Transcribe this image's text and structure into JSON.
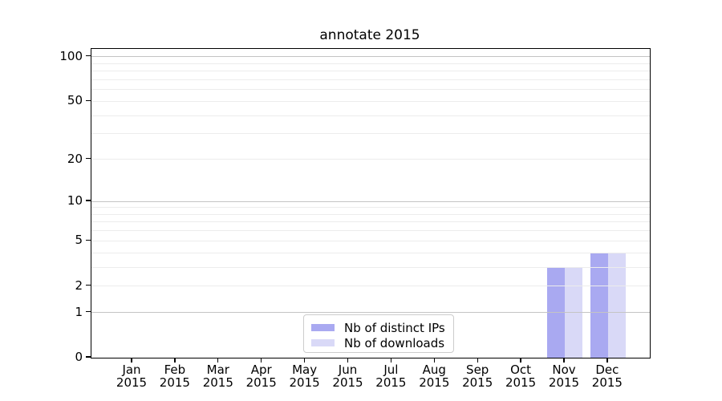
{
  "title": "annotate 2015",
  "chart_data": {
    "type": "bar",
    "title": "annotate 2015",
    "x_categories": [
      "Jan",
      "Feb",
      "Mar",
      "Apr",
      "May",
      "Jun",
      "Jul",
      "Aug",
      "Sep",
      "Oct",
      "Nov",
      "Dec"
    ],
    "x_year_label": "2015",
    "series": [
      {
        "name": "Nb of distinct IPs",
        "color": "#a9a9f1",
        "values": [
          0,
          0,
          0,
          0,
          0,
          0,
          0,
          0,
          0,
          0,
          3,
          4
        ]
      },
      {
        "name": "Nb of downloads",
        "color": "#d9d9f7",
        "values": [
          0,
          0,
          0,
          0,
          0,
          0,
          0,
          0,
          0,
          0,
          3,
          4
        ]
      }
    ],
    "y_scale": "log10(1+y)",
    "ylim": [
      0,
      113
    ],
    "y_tick_values": [
      0,
      1,
      2,
      5,
      10,
      20,
      50,
      100
    ],
    "y_gridlines_major": [
      1,
      10,
      100
    ],
    "y_gridlines_minor": [
      2,
      3,
      4,
      5,
      6,
      7,
      8,
      9,
      20,
      30,
      40,
      50,
      60,
      70,
      80,
      90
    ],
    "grid": "horizontal",
    "legend_position": "lower center",
    "colors": {
      "major_grid": "#c4c4c4",
      "minor_grid": "#ececec",
      "spine": "#000000",
      "background": "#ffffff",
      "text": "#000000"
    }
  }
}
